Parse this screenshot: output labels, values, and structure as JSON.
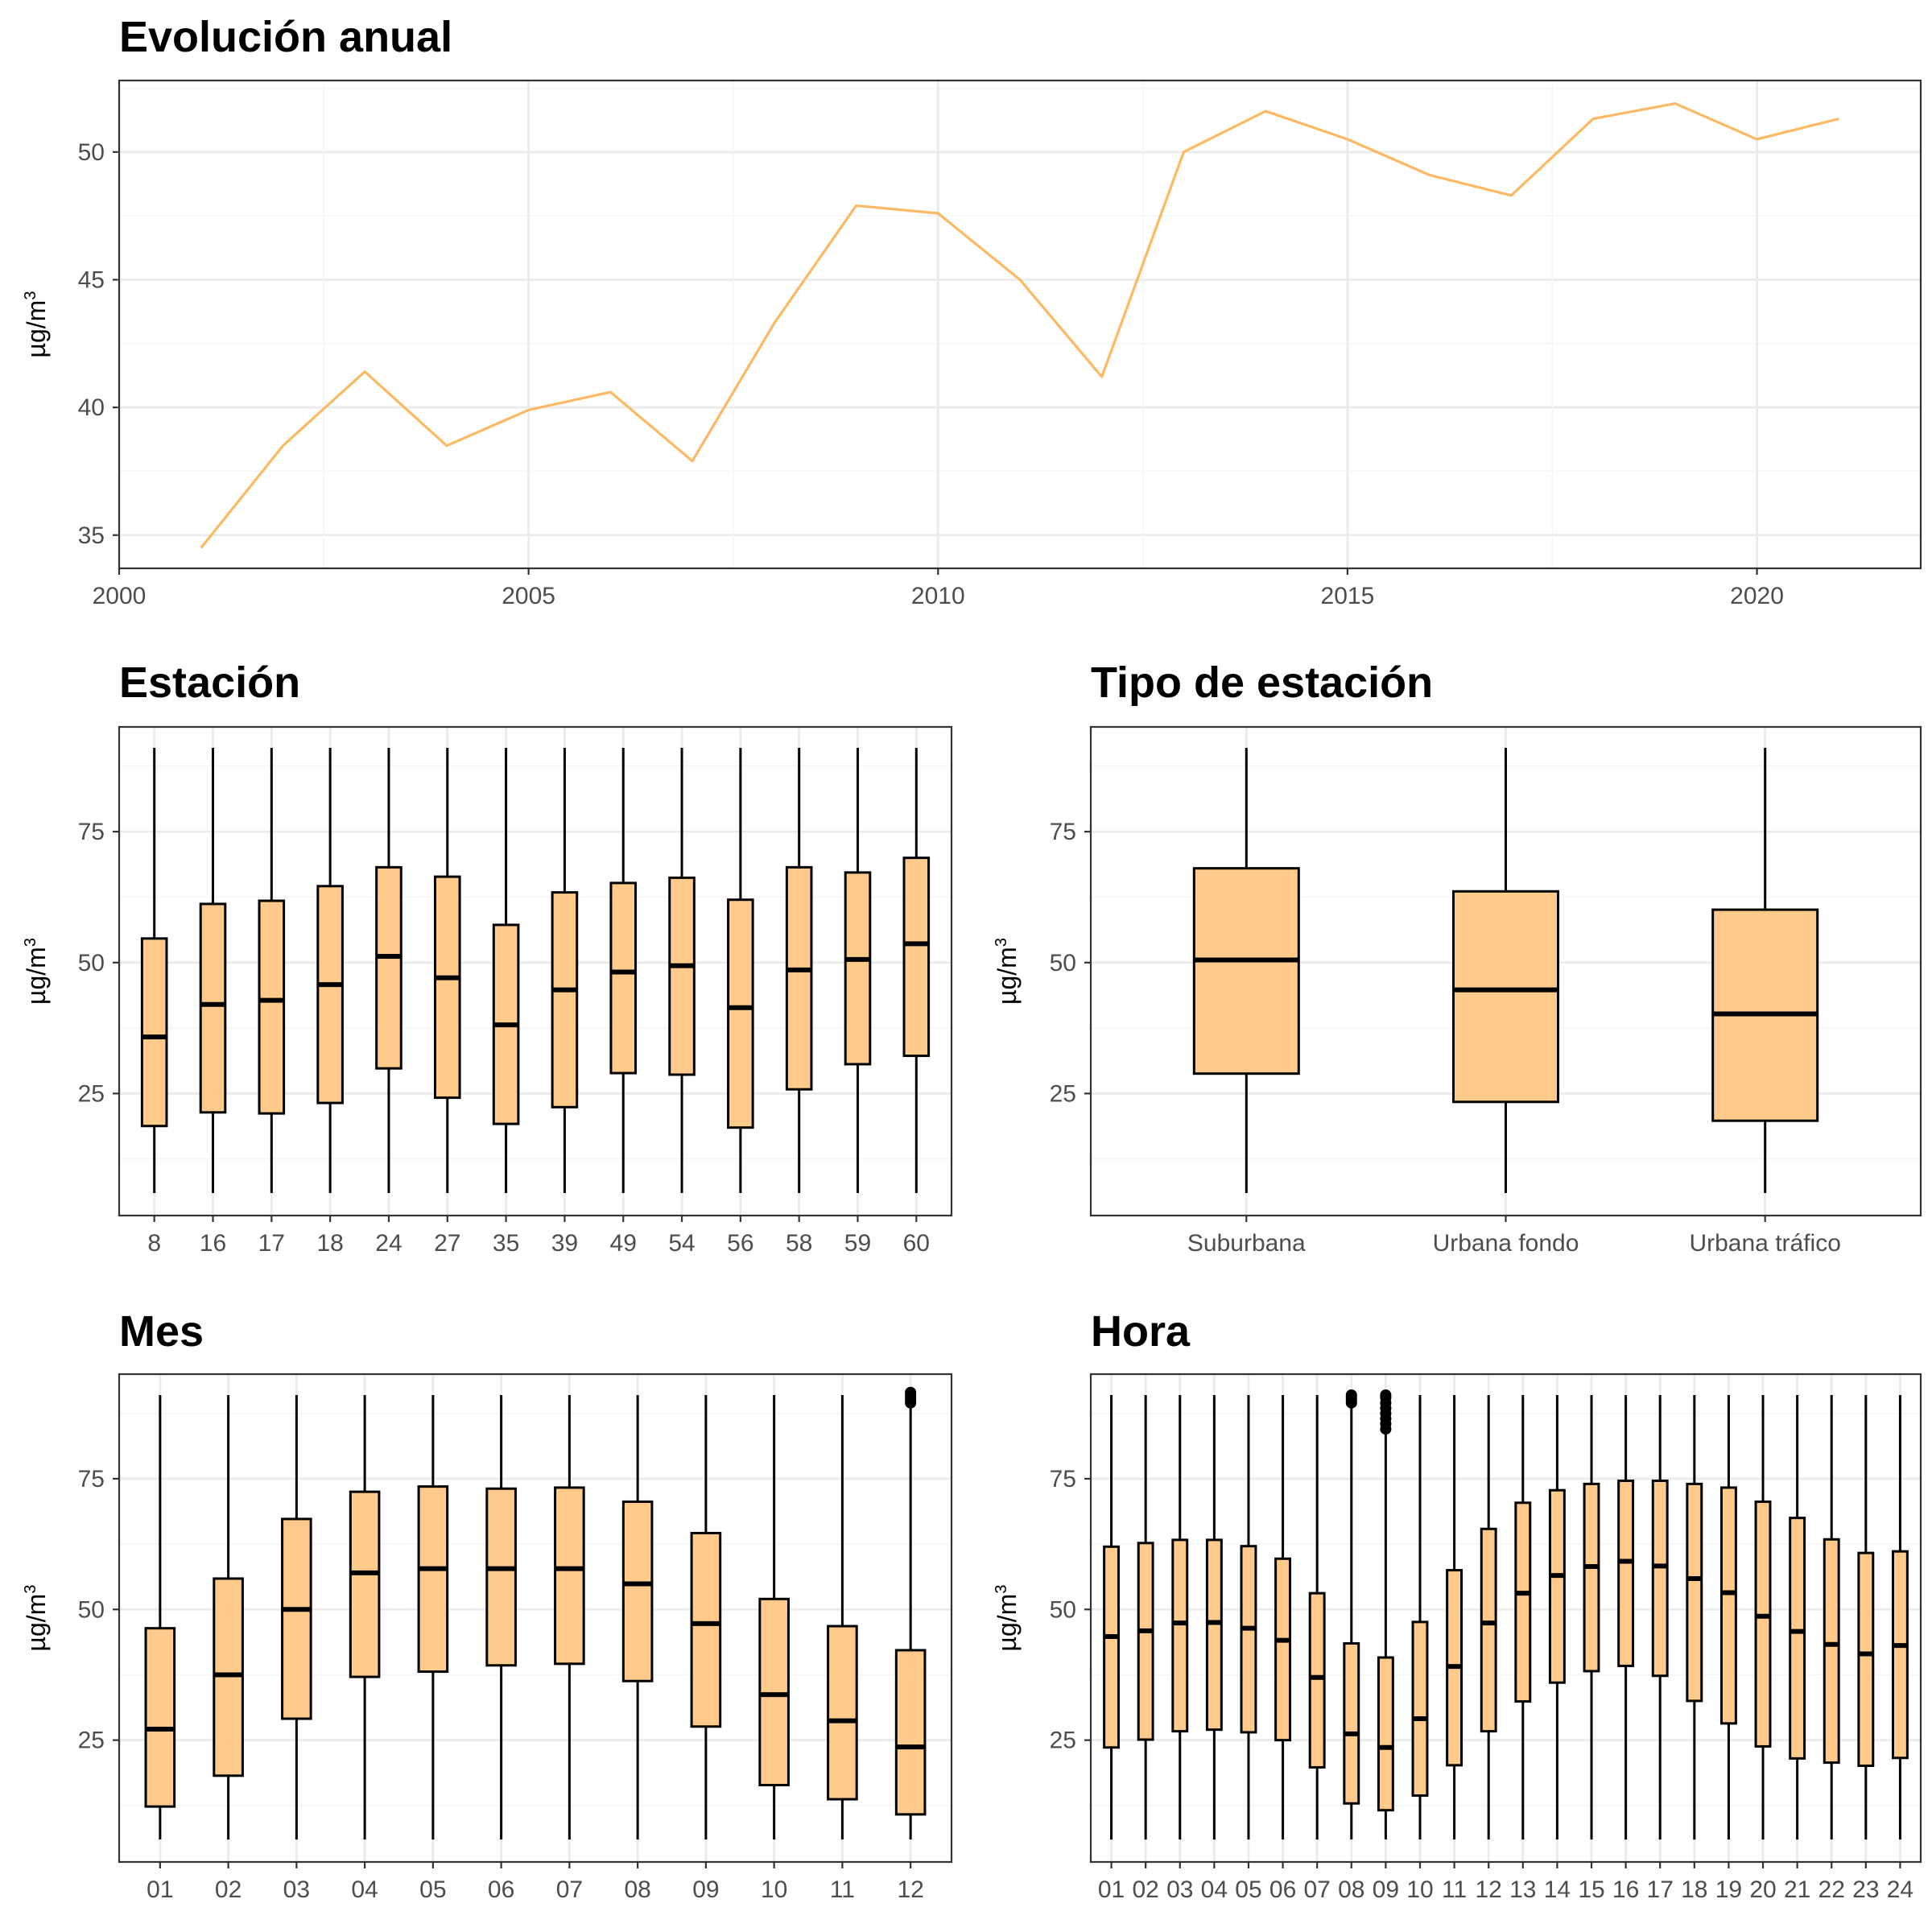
{
  "colors": {
    "line": "#FDB863",
    "box_fill": "#FFCA8A",
    "grid_major": "#EBEBEB",
    "grid_minor": "#F5F5F5",
    "panel_border": "#333333",
    "text": "#000000",
    "tick_text": "#4D4D4D"
  },
  "chart_data": [
    {
      "id": "annual",
      "type": "line",
      "title": "Evolución anual",
      "ylabel": "µg/m",
      "ylabel_sup": "3",
      "xlabel": "",
      "xlim": [
        2000,
        2022
      ],
      "ylim": [
        33.7,
        52.8
      ],
      "x_ticks": [
        2000,
        2005,
        2010,
        2015,
        2020
      ],
      "y_ticks": [
        35,
        40,
        45,
        50
      ],
      "grid": true,
      "x": [
        2001,
        2002,
        2003,
        2004,
        2005,
        2006,
        2007,
        2008,
        2009,
        2010,
        2011,
        2012,
        2013,
        2014,
        2015,
        2016,
        2017,
        2018,
        2019,
        2020,
        2021
      ],
      "y": [
        34.5,
        38.5,
        41.4,
        38.5,
        39.9,
        40.6,
        37.9,
        43.3,
        47.9,
        47.6,
        45.0,
        41.2,
        50.0,
        51.6,
        50.5,
        49.1,
        48.3,
        51.3,
        51.9,
        50.5,
        51.3
      ]
    },
    {
      "id": "estacion",
      "type": "box",
      "title": "Estación",
      "ylabel": "µg/m",
      "ylabel_sup": "3",
      "ylim": [
        1.7,
        95
      ],
      "y_ticks": [
        25,
        50,
        75
      ],
      "grid": true,
      "categories": [
        "8",
        "16",
        "17",
        "18",
        "24",
        "27",
        "35",
        "39",
        "49",
        "54",
        "56",
        "58",
        "59",
        "60"
      ],
      "boxes": [
        {
          "min": 6,
          "q1": 18.8,
          "median": 35.8,
          "q3": 54.6,
          "max": 91
        },
        {
          "min": 6,
          "q1": 21.4,
          "median": 42.0,
          "q3": 61.2,
          "max": 91
        },
        {
          "min": 6,
          "q1": 21.2,
          "median": 42.8,
          "q3": 61.8,
          "max": 91
        },
        {
          "min": 6,
          "q1": 23.2,
          "median": 45.8,
          "q3": 64.6,
          "max": 91
        },
        {
          "min": 6,
          "q1": 29.8,
          "median": 51.2,
          "q3": 68.2,
          "max": 91
        },
        {
          "min": 6,
          "q1": 24.2,
          "median": 47.1,
          "q3": 66.4,
          "max": 91
        },
        {
          "min": 6,
          "q1": 19.2,
          "median": 38.1,
          "q3": 57.2,
          "max": 91
        },
        {
          "min": 6,
          "q1": 22.4,
          "median": 44.8,
          "q3": 63.4,
          "max": 91
        },
        {
          "min": 6,
          "q1": 28.9,
          "median": 48.2,
          "q3": 65.2,
          "max": 91
        },
        {
          "min": 6,
          "q1": 28.6,
          "median": 49.4,
          "q3": 66.2,
          "max": 91
        },
        {
          "min": 6,
          "q1": 18.5,
          "median": 41.4,
          "q3": 62.0,
          "max": 91
        },
        {
          "min": 6,
          "q1": 25.8,
          "median": 48.6,
          "q3": 68.2,
          "max": 91
        },
        {
          "min": 6,
          "q1": 30.6,
          "median": 50.6,
          "q3": 67.2,
          "max": 91
        },
        {
          "min": 6,
          "q1": 32.2,
          "median": 53.6,
          "q3": 70.0,
          "max": 91
        }
      ]
    },
    {
      "id": "tipo",
      "type": "box",
      "title": "Tipo de estación",
      "ylabel": "µg/m",
      "ylabel_sup": "3",
      "ylim": [
        1.7,
        95
      ],
      "y_ticks": [
        25,
        50,
        75
      ],
      "grid": true,
      "categories": [
        "Suburbana",
        "Urbana fondo",
        "Urbana tráfico"
      ],
      "boxes": [
        {
          "min": 6,
          "q1": 28.8,
          "median": 50.5,
          "q3": 68.0,
          "max": 91
        },
        {
          "min": 6,
          "q1": 23.4,
          "median": 44.8,
          "q3": 63.6,
          "max": 91
        },
        {
          "min": 6,
          "q1": 19.8,
          "median": 40.2,
          "q3": 60.1,
          "max": 91
        }
      ]
    },
    {
      "id": "mes",
      "type": "box",
      "title": "Mes",
      "ylabel": "µg/m",
      "ylabel_sup": "3",
      "ylim": [
        1.7,
        95
      ],
      "y_ticks": [
        25,
        50,
        75
      ],
      "grid": true,
      "categories": [
        "01",
        "02",
        "03",
        "04",
        "05",
        "06",
        "07",
        "08",
        "09",
        "10",
        "11",
        "12"
      ],
      "boxes": [
        {
          "min": 6,
          "q1": 12.3,
          "median": 27.1,
          "q3": 46.4,
          "max": 91
        },
        {
          "min": 6,
          "q1": 18.2,
          "median": 37.5,
          "q3": 55.9,
          "max": 91
        },
        {
          "min": 6,
          "q1": 29.1,
          "median": 50.0,
          "q3": 67.3,
          "max": 91
        },
        {
          "min": 6,
          "q1": 37.1,
          "median": 57.0,
          "q3": 72.5,
          "max": 91
        },
        {
          "min": 6,
          "q1": 38.1,
          "median": 57.8,
          "q3": 73.5,
          "max": 91
        },
        {
          "min": 6,
          "q1": 39.3,
          "median": 57.8,
          "q3": 73.1,
          "max": 91
        },
        {
          "min": 6,
          "q1": 39.6,
          "median": 57.8,
          "q3": 73.3,
          "max": 91
        },
        {
          "min": 6,
          "q1": 36.3,
          "median": 54.9,
          "q3": 70.6,
          "max": 91
        },
        {
          "min": 6,
          "q1": 27.6,
          "median": 47.3,
          "q3": 64.6,
          "max": 91
        },
        {
          "min": 6,
          "q1": 16.4,
          "median": 33.7,
          "q3": 52.0,
          "max": 91
        },
        {
          "min": 6,
          "q1": 13.7,
          "median": 28.7,
          "q3": 46.8,
          "max": 91
        },
        {
          "min": 6,
          "q1": 10.8,
          "median": 23.7,
          "q3": 42.2,
          "max": 89,
          "outliers": [
            89.5,
            90.0,
            90.5,
            91.0,
            91.5
          ]
        }
      ]
    },
    {
      "id": "hora",
      "type": "box",
      "title": "Hora",
      "ylabel": "µg/m",
      "ylabel_sup": "3",
      "ylim": [
        1.7,
        95
      ],
      "y_ticks": [
        25,
        50,
        75
      ],
      "grid": true,
      "categories": [
        "01",
        "02",
        "03",
        "04",
        "05",
        "06",
        "07",
        "08",
        "09",
        "10",
        "11",
        "12",
        "13",
        "14",
        "15",
        "16",
        "17",
        "18",
        "19",
        "20",
        "21",
        "22",
        "23",
        "24"
      ],
      "boxes": [
        {
          "min": 6,
          "q1": 23.6,
          "median": 44.8,
          "q3": 62.0,
          "max": 91
        },
        {
          "min": 6,
          "q1": 25.1,
          "median": 45.9,
          "q3": 62.7,
          "max": 91
        },
        {
          "min": 6,
          "q1": 26.7,
          "median": 47.4,
          "q3": 63.3,
          "max": 91
        },
        {
          "min": 6,
          "q1": 27.0,
          "median": 47.5,
          "q3": 63.3,
          "max": 91
        },
        {
          "min": 6,
          "q1": 26.5,
          "median": 46.4,
          "q3": 62.1,
          "max": 91
        },
        {
          "min": 6,
          "q1": 25.0,
          "median": 44.1,
          "q3": 59.7,
          "max": 91
        },
        {
          "min": 6,
          "q1": 19.8,
          "median": 37.0,
          "q3": 53.1,
          "max": 91
        },
        {
          "min": 6,
          "q1": 12.9,
          "median": 26.2,
          "q3": 43.5,
          "max": 89,
          "outliers": [
            89.5,
            90.0,
            90.5,
            91.0
          ]
        },
        {
          "min": 6,
          "q1": 11.6,
          "median": 23.6,
          "q3": 40.8,
          "max": 84,
          "outliers": [
            84.5,
            85.5,
            86.5,
            87.5,
            88.5,
            89.5,
            90.5,
            91.0
          ]
        },
        {
          "min": 6,
          "q1": 14.4,
          "median": 29.1,
          "q3": 47.6,
          "max": 91
        },
        {
          "min": 6,
          "q1": 20.2,
          "median": 39.1,
          "q3": 57.5,
          "max": 91
        },
        {
          "min": 6,
          "q1": 26.7,
          "median": 47.4,
          "q3": 65.4,
          "max": 91
        },
        {
          "min": 6,
          "q1": 32.4,
          "median": 53.1,
          "q3": 70.4,
          "max": 91
        },
        {
          "min": 6,
          "q1": 36.0,
          "median": 56.5,
          "q3": 72.8,
          "max": 91
        },
        {
          "min": 6,
          "q1": 38.2,
          "median": 58.2,
          "q3": 74.0,
          "max": 91
        },
        {
          "min": 6,
          "q1": 39.2,
          "median": 59.2,
          "q3": 74.6,
          "max": 91
        },
        {
          "min": 6,
          "q1": 37.3,
          "median": 58.3,
          "q3": 74.6,
          "max": 91
        },
        {
          "min": 6,
          "q1": 32.5,
          "median": 55.9,
          "q3": 74.0,
          "max": 91
        },
        {
          "min": 6,
          "q1": 28.2,
          "median": 53.2,
          "q3": 73.3,
          "max": 91
        },
        {
          "min": 6,
          "q1": 23.8,
          "median": 48.7,
          "q3": 70.6,
          "max": 91
        },
        {
          "min": 6,
          "q1": 21.5,
          "median": 45.8,
          "q3": 67.5,
          "max": 91
        },
        {
          "min": 6,
          "q1": 20.7,
          "median": 43.3,
          "q3": 63.4,
          "max": 91
        },
        {
          "min": 6,
          "q1": 20.1,
          "median": 41.5,
          "q3": 60.8,
          "max": 91
        },
        {
          "min": 6,
          "q1": 21.6,
          "median": 43.1,
          "q3": 61.1,
          "max": 91
        }
      ]
    }
  ]
}
